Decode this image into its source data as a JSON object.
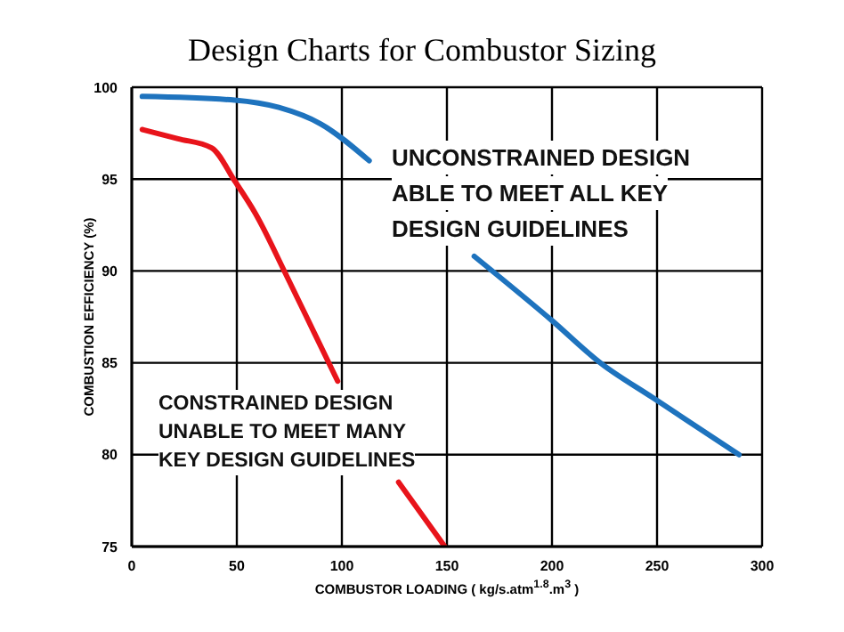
{
  "chart_data": {
    "type": "line",
    "title": "Design Charts for Combustor Sizing",
    "xlabel": "COMBUSTOR LOADING ( kg/s.atm$^{1.8}$.m$^{3}$ )",
    "ylabel": "COMBUSTION EFFICIENCY (%)",
    "xlim": [
      0,
      300
    ],
    "xticks": [
      0,
      50,
      100,
      150,
      200,
      250,
      300
    ],
    "ylim": [
      75,
      100
    ],
    "yticks": [
      75,
      80,
      85,
      90,
      95,
      100
    ],
    "grid": true,
    "annotations": [
      "UNCONSTRAINED DESIGN ABLE TO MEET ALL KEY DESIGN GUIDELINES",
      "CONSTRAINED DESIGN UNABLE TO MEET MANY KEY DESIGN GUIDELINES"
    ],
    "series": [
      {
        "color": "#1e73be",
        "x": [
          5,
          49,
          70,
          90,
          113,
          140,
          163,
          200,
          223,
          248,
          289
        ],
        "values": [
          99.5,
          99.3,
          98.9,
          98,
          96,
          null,
          90.8,
          87.3,
          85,
          83.1,
          80
        ]
      },
      {
        "color": "#e8141b",
        "x": [
          5,
          22,
          38,
          49,
          59,
          73,
          87,
          98,
          112,
          127,
          149
        ],
        "values": [
          97.7,
          97.2,
          96.7,
          94.9,
          93.1,
          89.9,
          86.6,
          84,
          null,
          78.5,
          75
        ]
      }
    ]
  }
}
